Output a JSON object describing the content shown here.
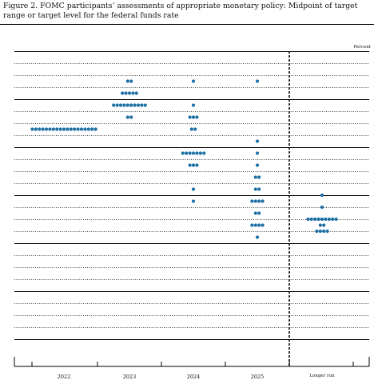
{
  "figure": {
    "title": "Figure 2.  FOMC participants’ assessments of appropriate monetary policy: Midpoint of target range or target level for the federal funds rate"
  },
  "chart_data": {
    "type": "scatter",
    "title": "Figure 2.  FOMC participants’ assessments of appropriate monetary policy: Midpoint of target range or target level for the federal funds rate",
    "ylabel": "Percent",
    "xlabel": "",
    "categories": [
      "2022",
      "2023",
      "2024",
      "2025",
      "Longer run"
    ],
    "ylim": [
      0.0,
      6.0
    ],
    "grid": true,
    "dot_color": "#1d6fa5",
    "line_color": "#000000",
    "dots": [
      {
        "category": "2022",
        "y": 4.375,
        "count": 19
      },
      {
        "category": "2023",
        "y": 5.375,
        "count": 2
      },
      {
        "category": "2023",
        "y": 5.125,
        "count": 5
      },
      {
        "category": "2023",
        "y": 4.875,
        "count": 10
      },
      {
        "category": "2023",
        "y": 4.625,
        "count": 2
      },
      {
        "category": "2024",
        "y": 5.375,
        "count": 1
      },
      {
        "category": "2024",
        "y": 4.875,
        "count": 1
      },
      {
        "category": "2024",
        "y": 4.625,
        "count": 3
      },
      {
        "category": "2024",
        "y": 4.375,
        "count": 2
      },
      {
        "category": "2024",
        "y": 3.875,
        "count": 7
      },
      {
        "category": "2024",
        "y": 3.625,
        "count": 3
      },
      {
        "category": "2024",
        "y": 3.125,
        "count": 1
      },
      {
        "category": "2024",
        "y": 2.875,
        "count": 1
      },
      {
        "category": "2025",
        "y": 5.375,
        "count": 1
      },
      {
        "category": "2025",
        "y": 4.125,
        "count": 1
      },
      {
        "category": "2025",
        "y": 3.875,
        "count": 1
      },
      {
        "category": "2025",
        "y": 3.625,
        "count": 1
      },
      {
        "category": "2025",
        "y": 3.375,
        "count": 2
      },
      {
        "category": "2025",
        "y": 3.125,
        "count": 2
      },
      {
        "category": "2025",
        "y": 2.875,
        "count": 4
      },
      {
        "category": "2025",
        "y": 2.625,
        "count": 2
      },
      {
        "category": "2025",
        "y": 2.375,
        "count": 4
      },
      {
        "category": "2025",
        "y": 2.125,
        "count": 1
      },
      {
        "category": "Longer run",
        "y": 3.0,
        "count": 1
      },
      {
        "category": "Longer run",
        "y": 2.75,
        "count": 1
      },
      {
        "category": "Longer run",
        "y": 2.5,
        "count": 9
      },
      {
        "category": "Longer run",
        "y": 2.375,
        "count": 2
      },
      {
        "category": "Longer run",
        "y": 2.25,
        "count": 4
      }
    ]
  }
}
